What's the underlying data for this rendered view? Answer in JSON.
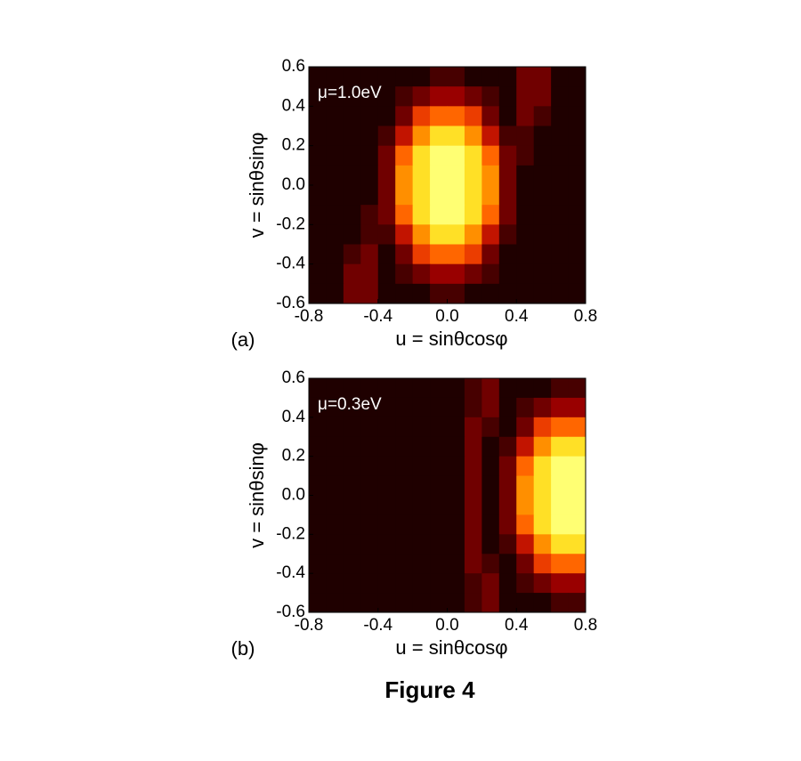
{
  "chart_data": [
    {
      "type": "heatmap",
      "panel_label": "(a)",
      "annotation": "μ=1.0eV",
      "xlabel": "u = sinθcosφ",
      "ylabel": "v = sinθsinφ",
      "colormap": "hot",
      "xlim": [
        -0.8,
        0.8
      ],
      "ylim": [
        -0.6,
        0.6
      ],
      "xticks": [
        -0.8,
        -0.4,
        {
          "value": 0,
          "label": "0.0"
        },
        0.4,
        0.8
      ],
      "yticks": [
        0.6,
        0.4,
        0.2,
        {
          "value": 0,
          "label": "0.0"
        },
        -0.2,
        -0.4,
        -0.6
      ],
      "x": [
        -0.75,
        -0.65,
        -0.55,
        -0.45,
        -0.35,
        -0.25,
        -0.15,
        -0.05,
        0.05,
        0.15,
        0.25,
        0.35,
        0.45,
        0.55,
        0.65,
        0.75
      ],
      "y": [
        0.55,
        0.45,
        0.35,
        0.25,
        0.15,
        0.05,
        -0.05,
        -0.15,
        -0.25,
        -0.35,
        -0.45,
        -0.55
      ],
      "values": [
        [
          0,
          0,
          0,
          0,
          0,
          0,
          0,
          0.1,
          0.1,
          0,
          0,
          0,
          0.2,
          0.2,
          0,
          0
        ],
        [
          0,
          0,
          0,
          0,
          0,
          0.1,
          0.2,
          0.3,
          0.3,
          0.2,
          0.1,
          0,
          0.2,
          0.2,
          0,
          0
        ],
        [
          0,
          0,
          0,
          0,
          0,
          0.2,
          0.5,
          0.6,
          0.6,
          0.5,
          0.2,
          0,
          0.2,
          0.1,
          0,
          0
        ],
        [
          0,
          0,
          0,
          0,
          0.1,
          0.4,
          0.7,
          0.9,
          0.9,
          0.7,
          0.4,
          0.1,
          0.1,
          0,
          0,
          0
        ],
        [
          0,
          0,
          0,
          0,
          0.2,
          0.6,
          0.9,
          1.0,
          1.0,
          0.9,
          0.6,
          0.2,
          0.1,
          0,
          0,
          0
        ],
        [
          0,
          0,
          0,
          0,
          0.2,
          0.7,
          0.9,
          1.0,
          1.0,
          0.9,
          0.7,
          0.2,
          0,
          0,
          0,
          0
        ],
        [
          0,
          0,
          0,
          0,
          0.2,
          0.7,
          0.9,
          1.0,
          1.0,
          0.9,
          0.7,
          0.2,
          0,
          0,
          0,
          0
        ],
        [
          0,
          0,
          0,
          0.1,
          0.2,
          0.6,
          0.9,
          1.0,
          1.0,
          0.9,
          0.6,
          0.2,
          0,
          0,
          0,
          0
        ],
        [
          0,
          0,
          0,
          0.1,
          0.1,
          0.4,
          0.7,
          0.9,
          0.9,
          0.7,
          0.4,
          0.1,
          0,
          0,
          0,
          0
        ],
        [
          0,
          0,
          0.1,
          0.2,
          0,
          0.2,
          0.5,
          0.6,
          0.6,
          0.5,
          0.2,
          0,
          0,
          0,
          0,
          0
        ],
        [
          0,
          0,
          0.2,
          0.2,
          0,
          0.1,
          0.2,
          0.3,
          0.3,
          0.2,
          0.1,
          0,
          0,
          0,
          0,
          0
        ],
        [
          0,
          0,
          0.2,
          0.2,
          0,
          0,
          0,
          0.1,
          0.1,
          0,
          0,
          0,
          0,
          0,
          0,
          0
        ]
      ]
    },
    {
      "type": "heatmap",
      "panel_label": "(b)",
      "annotation": "μ=0.3eV",
      "xlabel": "u = sinθcosφ",
      "ylabel": "v = sinθsinφ",
      "colormap": "hot",
      "xlim": [
        -0.8,
        0.8
      ],
      "ylim": [
        -0.6,
        0.6
      ],
      "xticks": [
        -0.8,
        -0.4,
        {
          "value": 0,
          "label": "0.0"
        },
        0.4,
        0.8
      ],
      "yticks": [
        0.6,
        0.4,
        0.2,
        {
          "value": 0,
          "label": "0.0"
        },
        -0.2,
        -0.4,
        -0.6
      ],
      "x": [
        -0.75,
        -0.65,
        -0.55,
        -0.45,
        -0.35,
        -0.25,
        -0.15,
        -0.05,
        0.05,
        0.15,
        0.25,
        0.35,
        0.45,
        0.55,
        0.65,
        0.75
      ],
      "y": [
        0.55,
        0.45,
        0.35,
        0.25,
        0.15,
        0.05,
        -0.05,
        -0.15,
        -0.25,
        -0.35,
        -0.45,
        -0.55
      ],
      "values": [
        [
          0,
          0,
          0,
          0,
          0,
          0,
          0,
          0,
          0,
          0.1,
          0.2,
          0,
          0,
          0,
          0.1,
          0.1
        ],
        [
          0,
          0,
          0,
          0,
          0,
          0,
          0,
          0,
          0,
          0.1,
          0.2,
          0,
          0.1,
          0.2,
          0.3,
          0.3
        ],
        [
          0,
          0,
          0,
          0,
          0,
          0,
          0,
          0,
          0,
          0.2,
          0.1,
          0,
          0.2,
          0.5,
          0.6,
          0.6
        ],
        [
          0,
          0,
          0,
          0,
          0,
          0,
          0,
          0,
          0,
          0.2,
          0,
          0.1,
          0.4,
          0.7,
          0.9,
          0.9
        ],
        [
          0,
          0,
          0,
          0,
          0,
          0,
          0,
          0,
          0,
          0.2,
          0,
          0.2,
          0.6,
          0.9,
          1.0,
          1.0
        ],
        [
          0,
          0,
          0,
          0,
          0,
          0,
          0,
          0,
          0,
          0.2,
          0,
          0.2,
          0.7,
          0.9,
          1.0,
          1.0
        ],
        [
          0,
          0,
          0,
          0,
          0,
          0,
          0,
          0,
          0,
          0.2,
          0,
          0.2,
          0.7,
          0.9,
          1.0,
          1.0
        ],
        [
          0,
          0,
          0,
          0,
          0,
          0,
          0,
          0,
          0,
          0.2,
          0,
          0.2,
          0.6,
          0.9,
          1.0,
          1.0
        ],
        [
          0,
          0,
          0,
          0,
          0,
          0,
          0,
          0,
          0,
          0.2,
          0,
          0.1,
          0.4,
          0.7,
          0.9,
          0.9
        ],
        [
          0,
          0,
          0,
          0,
          0,
          0,
          0,
          0,
          0,
          0.2,
          0.1,
          0,
          0.2,
          0.5,
          0.6,
          0.6
        ],
        [
          0,
          0,
          0,
          0,
          0,
          0,
          0,
          0,
          0,
          0.1,
          0.2,
          0,
          0.1,
          0.2,
          0.3,
          0.3
        ],
        [
          0,
          0,
          0,
          0,
          0,
          0,
          0,
          0,
          0,
          0.1,
          0.2,
          0,
          0,
          0,
          0.1,
          0.1
        ]
      ]
    }
  ],
  "caption": "Figure 4"
}
